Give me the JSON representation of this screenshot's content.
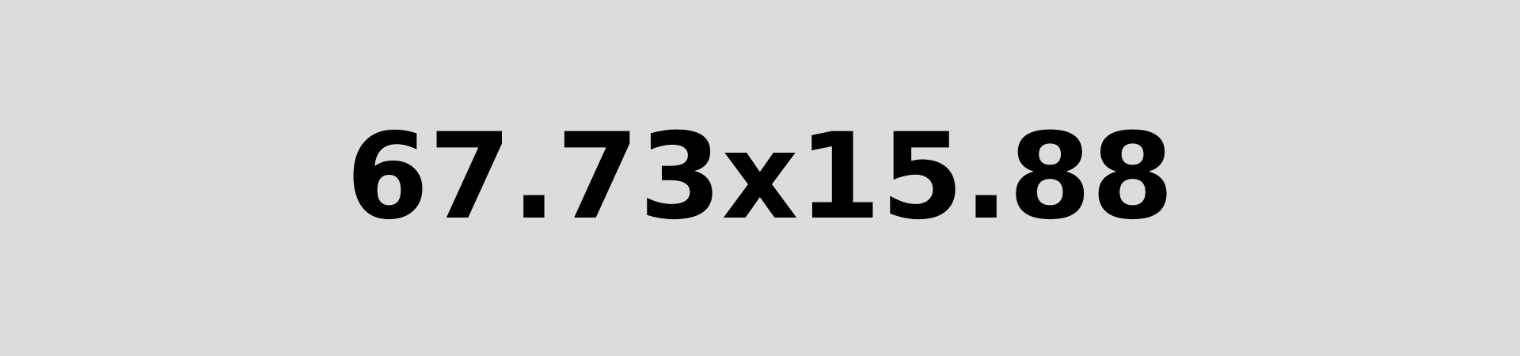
{
  "display": {
    "text": "67.73x15.88"
  },
  "colors": {
    "background": "#dcdcdc",
    "text": "#000000"
  }
}
